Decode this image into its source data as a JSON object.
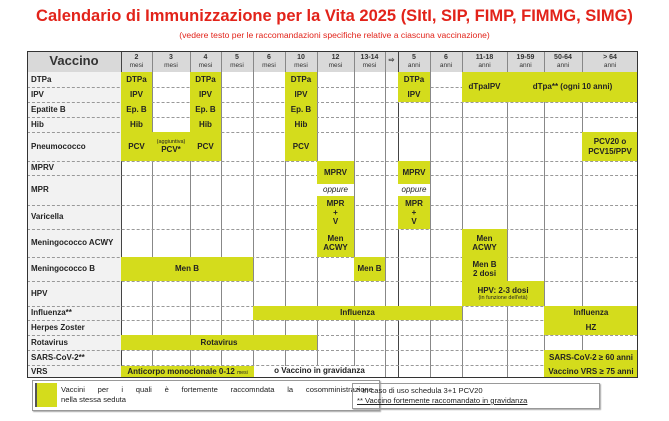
{
  "title": "Calendario di Immunizzazione per la Vita 2025 (SItI, SIP, FIMP, FIMMG, SIMG)",
  "subtitle": "(vedere testo per le raccomandazioni specifiche relative a ciascuna vaccinazione)",
  "colors": {
    "highlight": "#d4dc1c",
    "title": "#e2231a",
    "header": "#d9d9d9"
  },
  "table": {
    "header_label": "Vaccino",
    "columns": [
      {
        "n": "2",
        "u": "mesi"
      },
      {
        "n": "3",
        "u": "mesi"
      },
      {
        "n": "4",
        "u": "mesi"
      },
      {
        "n": "5",
        "u": "mesi"
      },
      {
        "n": "6",
        "u": "mesi"
      },
      {
        "n": "10",
        "u": "mesi"
      },
      {
        "n": "12",
        "u": "mesi"
      },
      {
        "n": "13-14",
        "u": "mesi"
      },
      {
        "n": "⇨",
        "u": ""
      },
      {
        "n": "5",
        "u": "anni"
      },
      {
        "n": "6",
        "u": "anni"
      },
      {
        "n": "11-18",
        "u": "anni"
      },
      {
        "n": "19-59",
        "u": "anni"
      },
      {
        "n": "50-64",
        "u": "anni"
      },
      {
        "n": "> 64",
        "u": "anni"
      }
    ],
    "rows": [
      "DTPa",
      "IPV",
      "Epatite B",
      "Hib",
      "Pneumococco",
      "MPRV",
      "MPR",
      "Varicella",
      "Meningococco ACWY",
      "Meningococco B",
      "HPV",
      "Influenza**",
      "Herpes Zoster",
      "Rotavirus",
      "SARS-CoV-2**",
      "VRS"
    ],
    "cells": {
      "dtpa": "DTPa",
      "ipv": "IPV",
      "epb": "Ep. B",
      "hib": "Hib",
      "pcv": "PCV",
      "pcv_extra_note": "(aggiuntiva)",
      "pcv_extra": "PCV*",
      "dtpaipv": "dTpaIPV",
      "dtpa_adult": "dTpa** (ogni 10 anni)",
      "pcv_adult_1": "PCV20 o",
      "pcv_adult_2": "PCV15/PPV",
      "mprv": "MPRV",
      "oppure": "oppure",
      "mpr": "MPR",
      "plus": "+",
      "v": "V",
      "men": "Men",
      "acwy": "ACWY",
      "menb": "Men B",
      "menb_doses": "2 dosi",
      "hpv": "HPV: 2-3 dosi",
      "hpv_note": "(in funzione dell'età)",
      "influenza": "Influenza",
      "hz": "HZ",
      "rotavirus": "Rotavirus",
      "sars_adult": "SARS-CoV-2 ≥ 60 anni",
      "vrs_mab": "Anticorpo monoclonale 0-12",
      "vrs_mab_unit": "mesi",
      "vrs_preg": "o Vaccino in gravidanza",
      "vrs_adult": "Vaccino VRS ≥ 75 anni"
    }
  },
  "legend": {
    "color_line1": "Vaccini per i quali è fortemente raccomndata la cosomministrazione",
    "color_line2": "nella stessa seduta",
    "note1": "*   In caso di uso schedula 3+1 PCV20",
    "note2": "** Vaccino fortemente raccomandato in gravidanza"
  }
}
